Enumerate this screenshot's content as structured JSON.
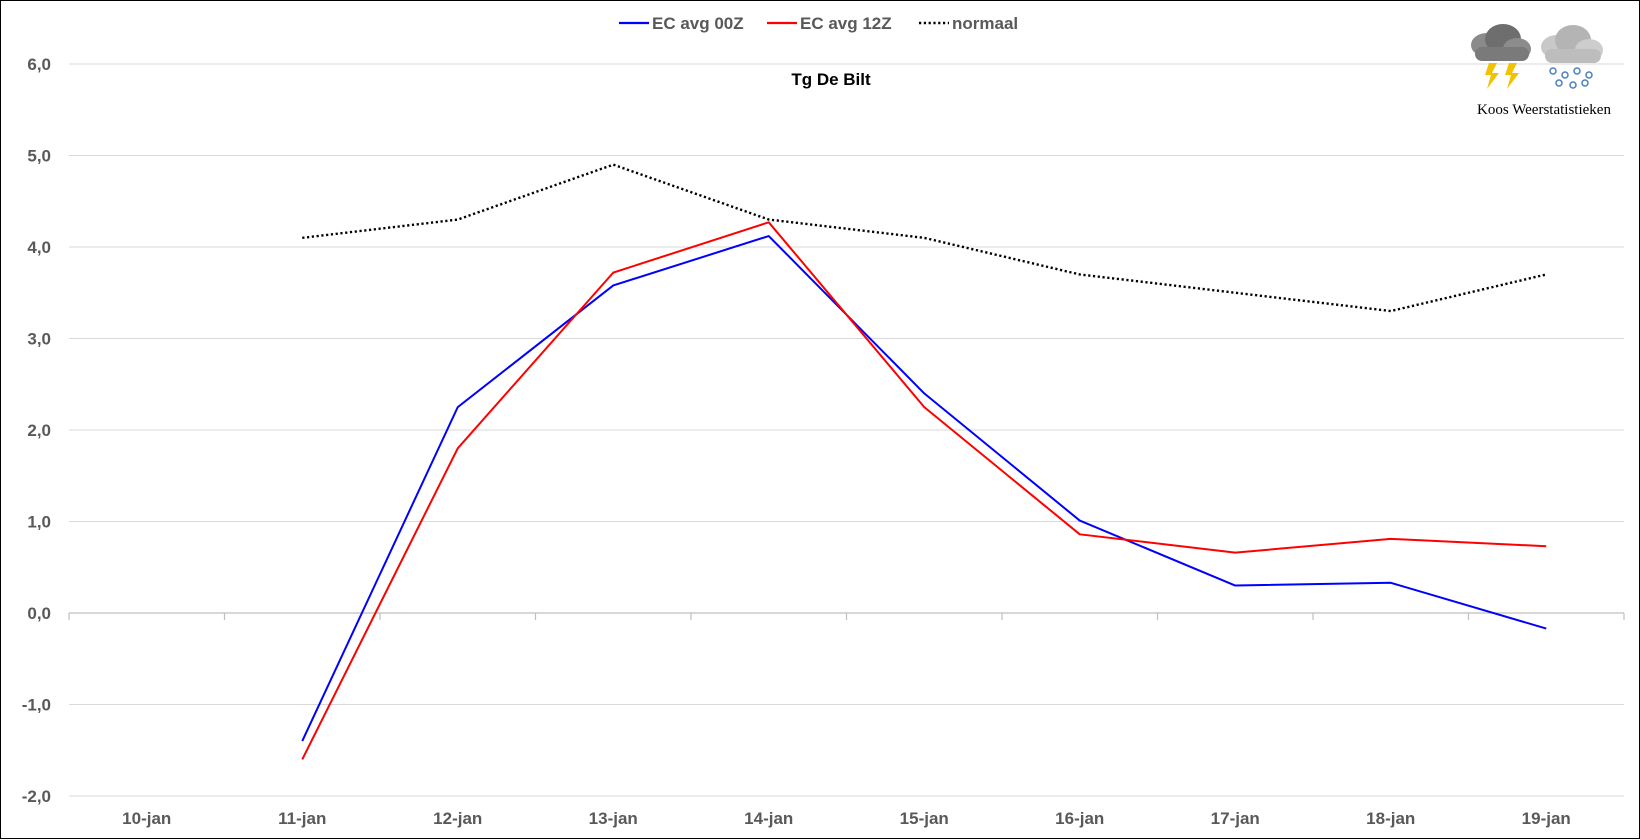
{
  "chart_data": {
    "type": "line",
    "title": "Tg De Bilt",
    "categories": [
      "10-jan",
      "11-jan",
      "12-jan",
      "13-jan",
      "14-jan",
      "15-jan",
      "16-jan",
      "17-jan",
      "18-jan",
      "19-jan"
    ],
    "ylim": [
      -2,
      6
    ],
    "yticks": [
      "6,0",
      "5,0",
      "4,0",
      "3,0",
      "2,0",
      "1,0",
      "0,0",
      "-1,0",
      "-2,0"
    ],
    "ytick_values": [
      6,
      5,
      4,
      3,
      2,
      1,
      0,
      -1,
      -2
    ],
    "grid": true,
    "legend_position": "top-center",
    "series": [
      {
        "name": "EC avg 00Z",
        "color": "#0000ff",
        "style": "solid",
        "values": [
          null,
          -1.4,
          2.25,
          3.58,
          4.12,
          2.4,
          1.01,
          0.3,
          0.33,
          -0.17
        ]
      },
      {
        "name": "EC avg 12Z",
        "color": "#ff0000",
        "style": "solid",
        "values": [
          null,
          -1.6,
          1.8,
          3.72,
          4.27,
          2.25,
          0.86,
          0.66,
          0.81,
          0.73
        ]
      },
      {
        "name": "normaal",
        "color": "#000000",
        "style": "dotted",
        "values": [
          null,
          4.1,
          4.3,
          4.9,
          4.3,
          4.1,
          3.7,
          3.5,
          3.3,
          3.7
        ]
      }
    ]
  },
  "branding": {
    "label": "Koos Weerstatistieken",
    "icons": [
      "thunderstorm-cloud-icon",
      "snow-cloud-icon"
    ]
  }
}
